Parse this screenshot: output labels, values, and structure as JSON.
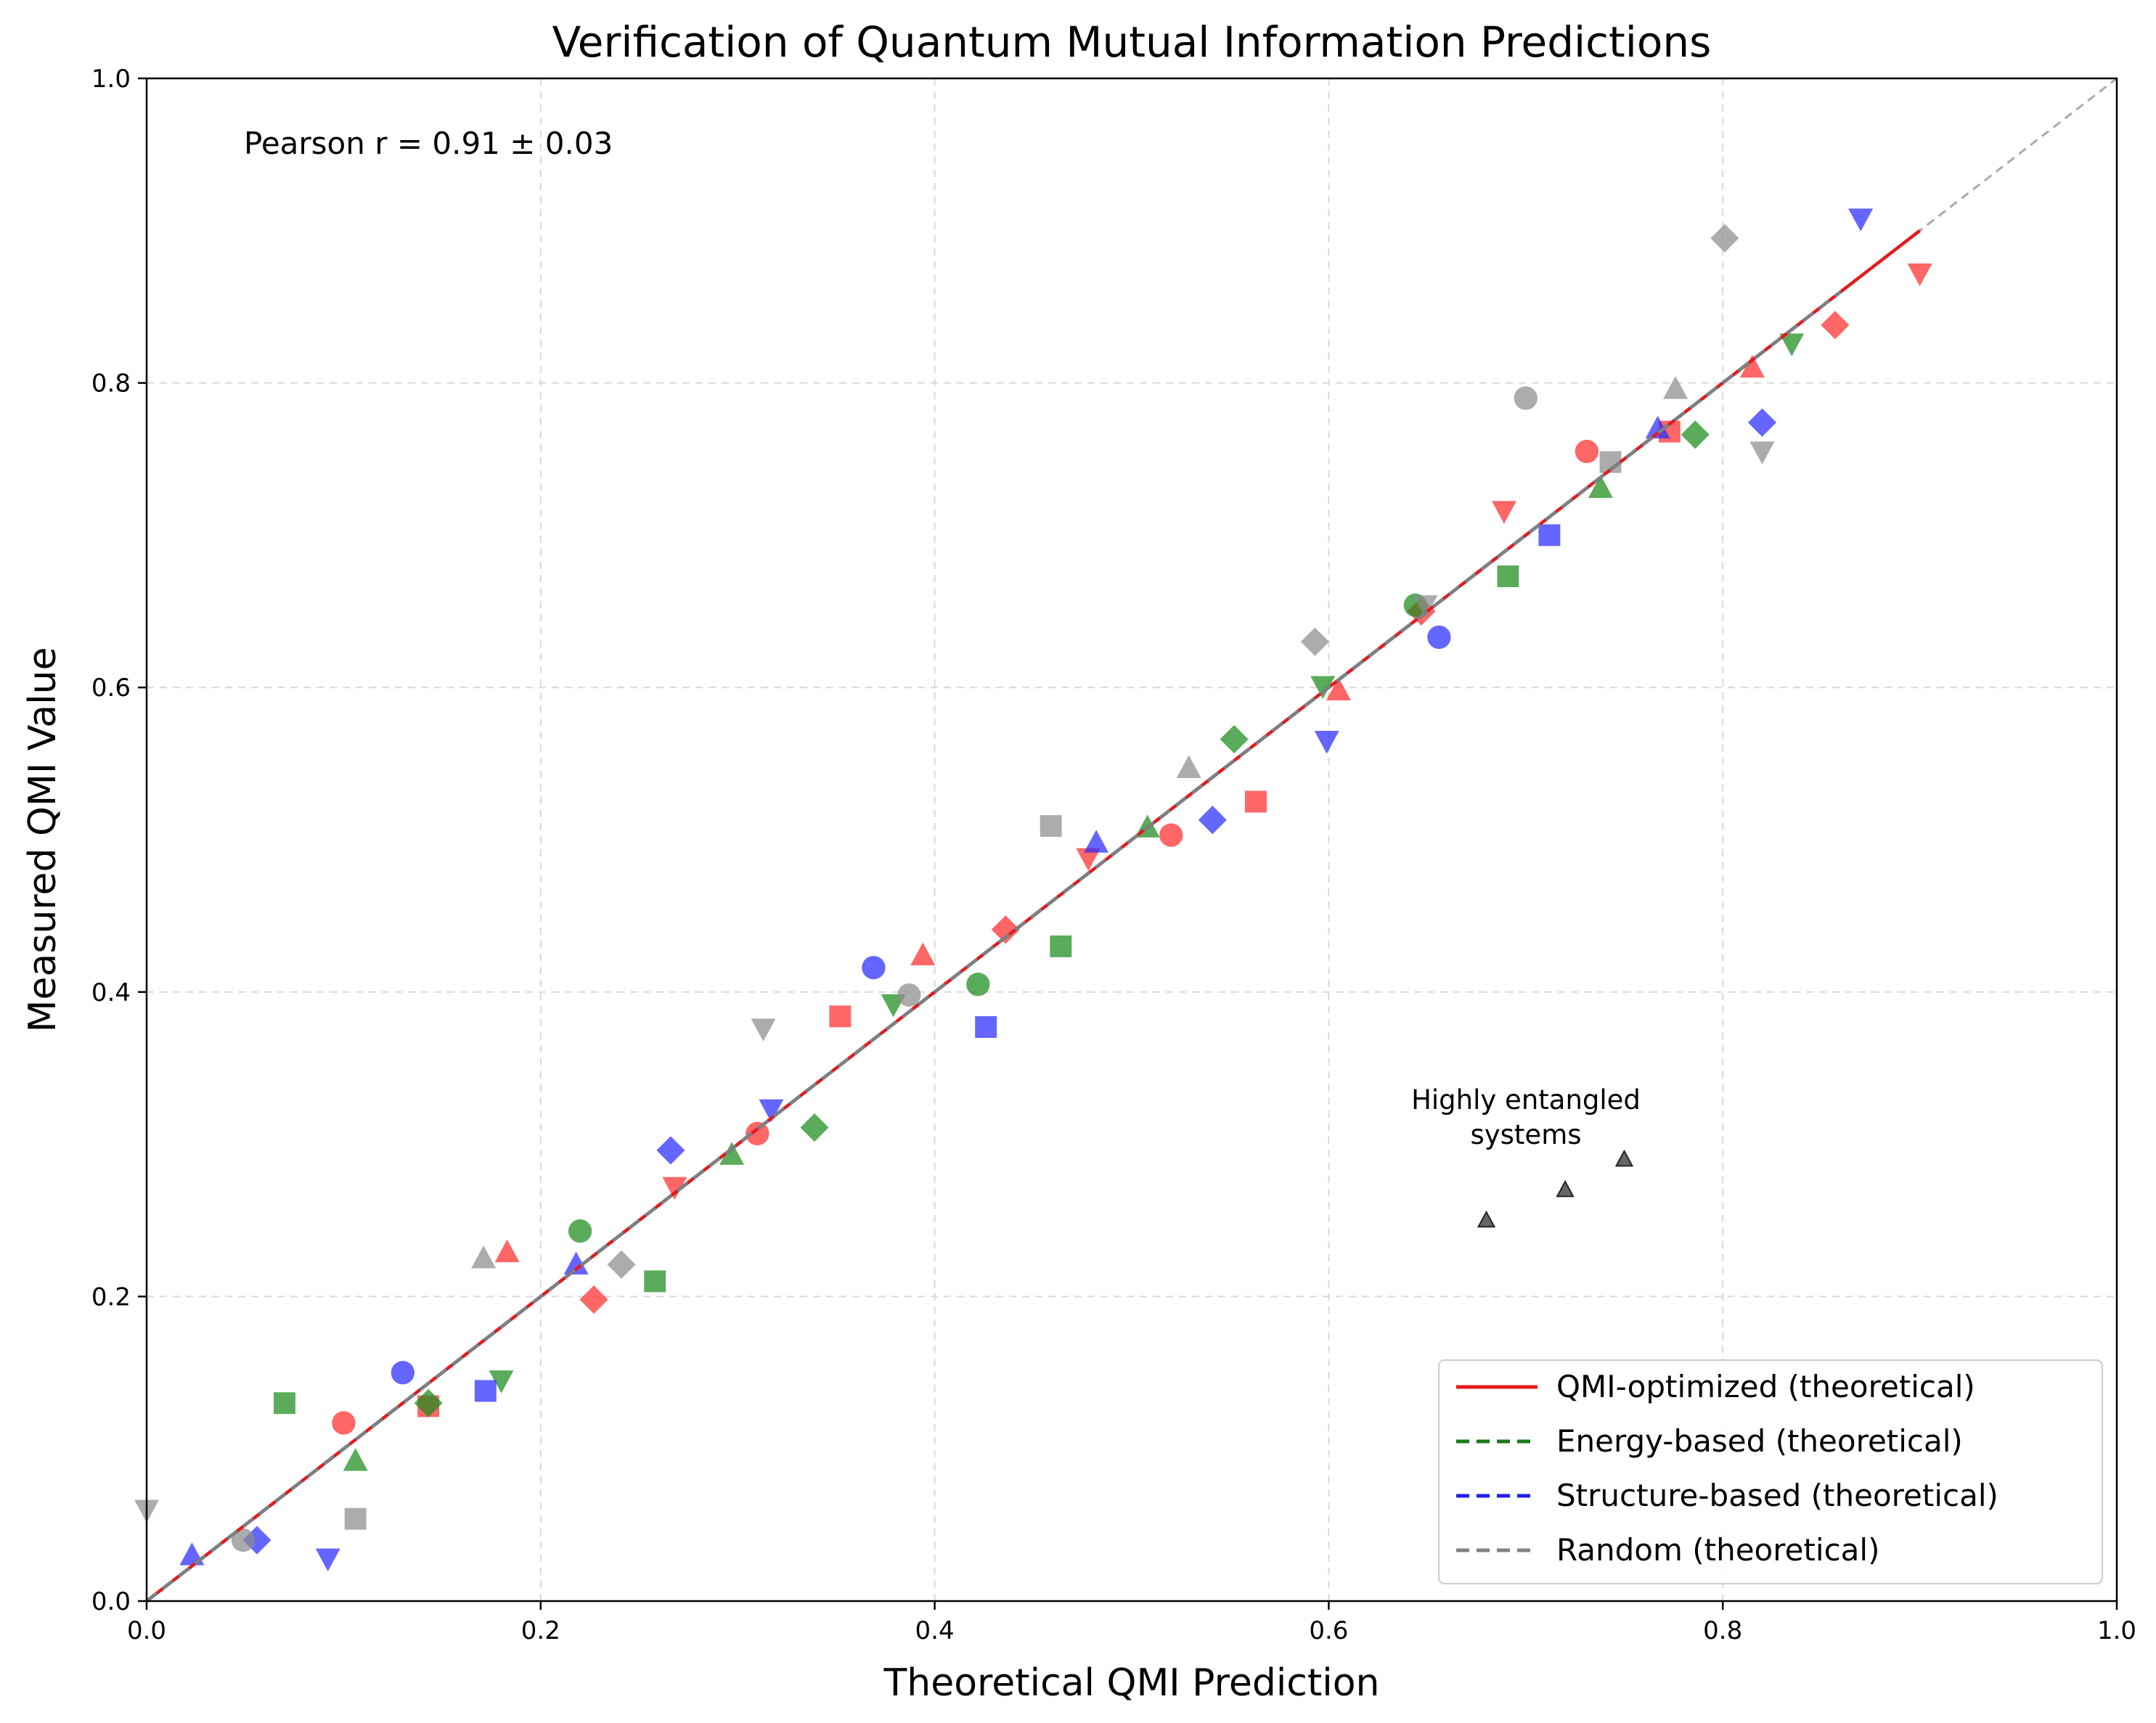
{
  "chart_data": {
    "type": "scatter",
    "title": "Verification of Quantum Mutual Information Predictions",
    "xlabel": "Theoretical QMI Prediction",
    "ylabel": "Measured QMI Value",
    "xlim": [
      0.0,
      1.0
    ],
    "ylim": [
      0.0,
      1.0
    ],
    "xticks": [
      0.0,
      0.2,
      0.4,
      0.6,
      0.8,
      1.0
    ],
    "yticks": [
      0.0,
      0.2,
      0.4,
      0.6,
      0.8,
      1.0
    ],
    "xtick_labels": [
      "0.0",
      "0.2",
      "0.4",
      "0.6",
      "0.8",
      "1.0"
    ],
    "ytick_labels": [
      "0.0",
      "0.2",
      "0.4",
      "0.6",
      "0.8",
      "1.0"
    ],
    "grid": true,
    "stat_annotation": "Pearson r = 0.91 ± 0.03",
    "annotations": [
      {
        "text_lines": [
          "Highly entangled",
          "systems"
        ],
        "x": 0.7,
        "y": 0.32,
        "markers": [
          {
            "x": 0.68,
            "y": 0.25
          },
          {
            "x": 0.72,
            "y": 0.27
          },
          {
            "x": 0.75,
            "y": 0.29
          }
        ]
      }
    ],
    "reference_line": {
      "style": "dashed",
      "color": "#aaaaaa",
      "x": [
        0.0,
        1.0
      ],
      "y": [
        0.0,
        1.0
      ]
    },
    "legend": {
      "position": "bottom-right",
      "entries": [
        {
          "label": "QMI-optimized (theoretical)",
          "color": "#e41a1c",
          "style": "solid"
        },
        {
          "label": "Energy-based (theoretical)",
          "color": "#1a7a1a",
          "style": "dashed"
        },
        {
          "label": "Structure-based (theoretical)",
          "color": "#1f1fe8",
          "style": "dashed"
        },
        {
          "label": "Random (theoretical)",
          "color": "#808080",
          "style": "dashed"
        }
      ]
    },
    "series": [
      {
        "name": "QMI-optimized",
        "color": "#ff2b2b",
        "line_color": "#e41a1c",
        "line_style": "solid",
        "line_x": [
          0.0,
          0.9
        ],
        "line_y": [
          0.0,
          0.9
        ],
        "points": [
          {
            "x": 0.1,
            "y": 0.117,
            "marker": "circle"
          },
          {
            "x": 0.143,
            "y": 0.128,
            "marker": "square"
          },
          {
            "x": 0.183,
            "y": 0.229,
            "marker": "triangle-up"
          },
          {
            "x": 0.227,
            "y": 0.198,
            "marker": "diamond"
          },
          {
            "x": 0.268,
            "y": 0.272,
            "marker": "triangle-down"
          },
          {
            "x": 0.31,
            "y": 0.307,
            "marker": "circle"
          },
          {
            "x": 0.352,
            "y": 0.384,
            "marker": "square"
          },
          {
            "x": 0.394,
            "y": 0.424,
            "marker": "triangle-up"
          },
          {
            "x": 0.436,
            "y": 0.441,
            "marker": "diamond"
          },
          {
            "x": 0.478,
            "y": 0.488,
            "marker": "triangle-down"
          },
          {
            "x": 0.52,
            "y": 0.503,
            "marker": "circle"
          },
          {
            "x": 0.563,
            "y": 0.525,
            "marker": "square"
          },
          {
            "x": 0.605,
            "y": 0.598,
            "marker": "triangle-up"
          },
          {
            "x": 0.647,
            "y": 0.65,
            "marker": "diamond"
          },
          {
            "x": 0.689,
            "y": 0.716,
            "marker": "triangle-down"
          },
          {
            "x": 0.731,
            "y": 0.755,
            "marker": "circle"
          },
          {
            "x": 0.773,
            "y": 0.768,
            "marker": "square"
          },
          {
            "x": 0.815,
            "y": 0.81,
            "marker": "triangle-up"
          },
          {
            "x": 0.857,
            "y": 0.838,
            "marker": "diamond"
          },
          {
            "x": 0.9,
            "y": 0.872,
            "marker": "triangle-down"
          }
        ]
      },
      {
        "name": "Energy-based",
        "color": "#1a8c1a",
        "line_color": "#1a7a1a",
        "line_style": "dashed",
        "line_x": [
          0.0,
          0.84
        ],
        "line_y": [
          0.0,
          0.84
        ],
        "points": [
          {
            "x": 0.07,
            "y": 0.13,
            "marker": "square"
          },
          {
            "x": 0.106,
            "y": 0.092,
            "marker": "triangle-up"
          },
          {
            "x": 0.143,
            "y": 0.13,
            "marker": "diamond"
          },
          {
            "x": 0.18,
            "y": 0.145,
            "marker": "triangle-down"
          },
          {
            "x": 0.22,
            "y": 0.243,
            "marker": "circle"
          },
          {
            "x": 0.258,
            "y": 0.21,
            "marker": "square"
          },
          {
            "x": 0.297,
            "y": 0.293,
            "marker": "triangle-up"
          },
          {
            "x": 0.339,
            "y": 0.311,
            "marker": "diamond"
          },
          {
            "x": 0.379,
            "y": 0.392,
            "marker": "triangle-down"
          },
          {
            "x": 0.422,
            "y": 0.405,
            "marker": "circle"
          },
          {
            "x": 0.464,
            "y": 0.43,
            "marker": "square"
          },
          {
            "x": 0.508,
            "y": 0.508,
            "marker": "triangle-up"
          },
          {
            "x": 0.552,
            "y": 0.566,
            "marker": "diamond"
          },
          {
            "x": 0.597,
            "y": 0.601,
            "marker": "triangle-down"
          },
          {
            "x": 0.644,
            "y": 0.654,
            "marker": "circle"
          },
          {
            "x": 0.691,
            "y": 0.673,
            "marker": "square"
          },
          {
            "x": 0.738,
            "y": 0.731,
            "marker": "triangle-up"
          },
          {
            "x": 0.786,
            "y": 0.766,
            "marker": "diamond"
          },
          {
            "x": 0.835,
            "y": 0.826,
            "marker": "triangle-down"
          }
        ]
      },
      {
        "name": "Structure-based",
        "color": "#2a2aff",
        "line_color": "#1f1fe8",
        "line_style": "dashed",
        "line_x": [
          0.0,
          0.86
        ],
        "line_y": [
          0.0,
          0.86
        ],
        "points": [
          {
            "x": 0.023,
            "y": 0.03,
            "marker": "triangle-up"
          },
          {
            "x": 0.056,
            "y": 0.04,
            "marker": "diamond"
          },
          {
            "x": 0.092,
            "y": 0.028,
            "marker": "triangle-down"
          },
          {
            "x": 0.13,
            "y": 0.15,
            "marker": "circle"
          },
          {
            "x": 0.172,
            "y": 0.138,
            "marker": "square"
          },
          {
            "x": 0.218,
            "y": 0.221,
            "marker": "triangle-up"
          },
          {
            "x": 0.266,
            "y": 0.296,
            "marker": "diamond"
          },
          {
            "x": 0.317,
            "y": 0.323,
            "marker": "triangle-down"
          },
          {
            "x": 0.369,
            "y": 0.416,
            "marker": "circle"
          },
          {
            "x": 0.426,
            "y": 0.377,
            "marker": "square"
          },
          {
            "x": 0.482,
            "y": 0.498,
            "marker": "triangle-up"
          },
          {
            "x": 0.541,
            "y": 0.513,
            "marker": "diamond"
          },
          {
            "x": 0.599,
            "y": 0.565,
            "marker": "triangle-down"
          },
          {
            "x": 0.656,
            "y": 0.633,
            "marker": "circle"
          },
          {
            "x": 0.712,
            "y": 0.7,
            "marker": "square"
          },
          {
            "x": 0.767,
            "y": 0.77,
            "marker": "triangle-up"
          },
          {
            "x": 0.82,
            "y": 0.774,
            "marker": "diamond"
          },
          {
            "x": 0.87,
            "y": 0.908,
            "marker": "triangle-down"
          }
        ]
      },
      {
        "name": "Random",
        "color": "#8c8c8c",
        "line_color": "#808080",
        "line_style": "dashed",
        "line_x": [
          0.0,
          0.86
        ],
        "line_y": [
          0.0,
          0.86
        ],
        "points": [
          {
            "x": 0.0,
            "y": 0.06,
            "marker": "triangle-down"
          },
          {
            "x": 0.049,
            "y": 0.04,
            "marker": "circle"
          },
          {
            "x": 0.106,
            "y": 0.054,
            "marker": "square"
          },
          {
            "x": 0.171,
            "y": 0.225,
            "marker": "triangle-up"
          },
          {
            "x": 0.241,
            "y": 0.221,
            "marker": "diamond"
          },
          {
            "x": 0.313,
            "y": 0.376,
            "marker": "triangle-down"
          },
          {
            "x": 0.387,
            "y": 0.398,
            "marker": "circle"
          },
          {
            "x": 0.459,
            "y": 0.509,
            "marker": "square"
          },
          {
            "x": 0.529,
            "y": 0.547,
            "marker": "triangle-up"
          },
          {
            "x": 0.593,
            "y": 0.63,
            "marker": "diamond"
          },
          {
            "x": 0.649,
            "y": 0.654,
            "marker": "triangle-down"
          },
          {
            "x": 0.7,
            "y": 0.79,
            "marker": "circle"
          },
          {
            "x": 0.743,
            "y": 0.748,
            "marker": "square"
          },
          {
            "x": 0.776,
            "y": 0.796,
            "marker": "triangle-up"
          },
          {
            "x": 0.801,
            "y": 0.895,
            "marker": "diamond"
          },
          {
            "x": 0.82,
            "y": 0.755,
            "marker": "triangle-down"
          }
        ]
      }
    ]
  }
}
